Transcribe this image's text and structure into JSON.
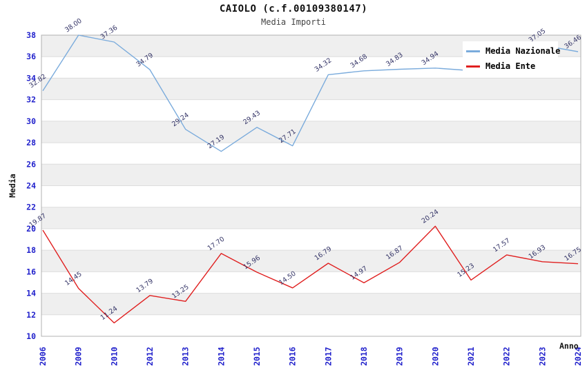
{
  "title": "CAIOLO (c.f.00109380147)",
  "subtitle": "Media Importi",
  "colors": {
    "nazionale": "#7aabdc",
    "ente": "#e01f1f",
    "tick_label": "#2222cc",
    "data_label": "#333366",
    "band": "#efefef",
    "grid": "#dddddd",
    "axis": "#b0b0b0"
  },
  "legend": {
    "items": [
      {
        "label": "Media Nazionale",
        "color": "#7aabdc"
      },
      {
        "label": "Media Ente",
        "color": "#e01f1f"
      }
    ]
  },
  "chart_data": {
    "type": "line",
    "title": "CAIOLO (c.f.00109380147)",
    "subtitle": "Media Importi",
    "xlabel": "Anno",
    "ylabel": "Media",
    "ylim": [
      10,
      38
    ],
    "ytick_step": 2,
    "grid": "horizontal gridlines with alternating gray bands",
    "legend_position": "top-right inside plot",
    "categories": [
      "2006",
      "2009",
      "2010",
      "2012",
      "2013",
      "2014",
      "2015",
      "2016",
      "2017",
      "2018",
      "2019",
      "2020",
      "2021",
      "2022",
      "2023",
      "2024"
    ],
    "series": [
      {
        "name": "Media Nazionale",
        "color": "#7aabdc",
        "values": [
          32.82,
          38.0,
          37.36,
          34.79,
          29.24,
          27.19,
          29.43,
          27.71,
          34.32,
          34.68,
          34.83,
          34.94,
          34.7,
          36.0,
          37.05,
          36.46
        ],
        "labels": [
          "32.82",
          "38.00",
          "37.36",
          "34.79",
          "29.24",
          "27.19",
          "29.43",
          "27.71",
          "34.32",
          "34.68",
          "34.83",
          "34.94",
          null,
          null,
          "37.05",
          "36.46"
        ],
        "note": "2021 and 2022 point labels are hidden behind the legend box; their values are estimated from the line path"
      },
      {
        "name": "Media Ente",
        "color": "#e01f1f",
        "values": [
          19.87,
          14.45,
          11.24,
          13.79,
          13.25,
          17.7,
          15.96,
          14.5,
          16.79,
          14.97,
          16.87,
          20.24,
          15.23,
          17.57,
          16.93,
          16.75
        ],
        "labels": [
          "19.87",
          "14.45",
          "11.24",
          "13.79",
          "13.25",
          "17.70",
          "15.96",
          "14.50",
          "16.79",
          "14.97",
          "16.87",
          "20.24",
          "15.23",
          "17.57",
          "16.93",
          "16.75"
        ]
      }
    ]
  }
}
